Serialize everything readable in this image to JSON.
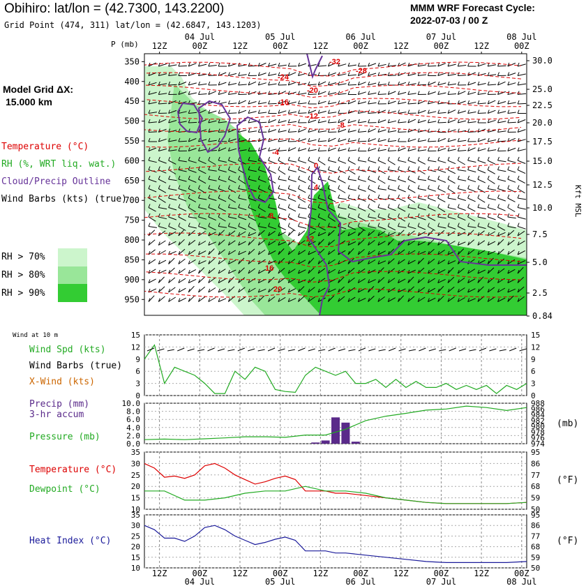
{
  "header": {
    "title": "Obihiro:  lat/lon = (42.7300, 143.2200)",
    "gridpoint": "Grid Point (474, 311) lat/lon = (42.6847, 143.1203)",
    "forecast_label": "MMM WRF Forecast Cycle:",
    "cycle": "2022-07-03 / 00  Z"
  },
  "model_grid": {
    "label": "Model Grid ΔX:",
    "value": "15.000 km"
  },
  "legend": {
    "temperature": "Temperature (°C)",
    "rh": "RH (%, WRT liq. wat.)",
    "cloud": "Cloud/Precip Outline",
    "windbarbs": "Wind Barbs (kts) (true)",
    "rh70": "RH > 70%",
    "rh80": "RH > 80%",
    "rh90": "RH > 90%"
  },
  "colors": {
    "temp": "#dd0000",
    "rh": "#22aa22",
    "cloud": "#663399",
    "wind": "#000000",
    "xwind": "#cc6600",
    "precip": "#5a2a8a",
    "heat": "#1a1a9a",
    "rh70": "#ccf5cc",
    "rh80": "#99e699",
    "rh90": "#33cc33"
  },
  "time_axis": {
    "ticks": [
      "12Z",
      "00Z",
      "12Z",
      "00Z",
      "12Z",
      "00Z",
      "12Z",
      "00Z",
      "12Z",
      "00Z"
    ],
    "dates": [
      "04 Jul",
      "05 Jul",
      "06 Jul",
      "07 Jul",
      "08 Jul"
    ]
  },
  "sounding": {
    "p_label": "P (mb)",
    "pressure_ticks": [
      "350",
      "400",
      "450",
      "500",
      "550",
      "600",
      "650",
      "700",
      "750",
      "800",
      "850",
      "900",
      "950"
    ],
    "height_ticks": [
      "30.0",
      "25.0",
      "22.5",
      "20.0",
      "17.5",
      "15.0",
      "12.5",
      "10.0",
      "7.5",
      "5.0",
      "2.5",
      "0.84"
    ],
    "height_label": "Kft MSL",
    "temp_labels": [
      "-32",
      "-28",
      "-24",
      "-20",
      "-16",
      "-12",
      "-8",
      "-4",
      "0",
      "4",
      "8",
      "12",
      "16",
      "20"
    ]
  },
  "wind_panel": {
    "wind_at": "Wind at 10 m",
    "spd_label": "Wind Spd (kts)",
    "barbs_label": "Wind Barbs (true)",
    "xwind_label": "X-Wind (kts)",
    "ticks": [
      "15",
      "12",
      "9",
      "6",
      "3",
      "0"
    ]
  },
  "precip_panel": {
    "precip_label": "Precip (mm)",
    "accum_label": "3-hr accum",
    "pressure_label": "Pressure (mb)",
    "mb_unit": "(mb)",
    "left_ticks": [
      "10.0",
      "8.0",
      "6.0",
      "4.0",
      "2.0",
      "0.0"
    ],
    "right_ticks": [
      "988",
      "986",
      "984",
      "982",
      "980",
      "978",
      "976",
      "974"
    ]
  },
  "temp_panel": {
    "temp_label": "Temperature (°C)",
    "dew_label": "Dewpoint (°C)",
    "unit": "(°F)",
    "c_ticks": [
      "35",
      "30",
      "25",
      "20",
      "15",
      "10"
    ],
    "f_ticks": [
      "95",
      "86",
      "77",
      "68",
      "59",
      "50"
    ]
  },
  "heat_panel": {
    "heat_label": "Heat Index (°C)",
    "unit": "(°F)",
    "c_ticks": [
      "35",
      "30",
      "25",
      "20",
      "15",
      "10"
    ],
    "f_ticks": [
      "95",
      "86",
      "77",
      "68",
      "59",
      "50"
    ]
  },
  "chart_data": [
    {
      "type": "line",
      "name": "wind_speed_10m",
      "x": [
        0,
        1,
        2,
        3,
        4,
        5,
        6,
        7,
        8,
        9,
        10,
        11,
        12,
        13,
        14,
        15,
        16,
        17,
        18,
        19,
        20,
        21,
        22,
        23,
        24,
        25,
        26,
        27,
        28,
        29,
        30,
        31,
        32,
        33,
        34,
        35,
        36,
        37,
        38
      ],
      "y": [
        9,
        12.5,
        3,
        7,
        6,
        5,
        3,
        0.5,
        0.5,
        6,
        4,
        7,
        6,
        1.5,
        1,
        0.8,
        5,
        7,
        6,
        5,
        6,
        3,
        3,
        4,
        2,
        4,
        2,
        3.5,
        2,
        2,
        3,
        1.5,
        2.5,
        1.5,
        2.5,
        0.5,
        2.5,
        1.5,
        3
      ],
      "ylim": [
        0,
        15
      ]
    },
    {
      "type": "bar",
      "name": "precip_3hr",
      "x": [
        17,
        18,
        19,
        20,
        21
      ],
      "values": [
        0.3,
        0.8,
        6.5,
        5.2,
        0.5
      ],
      "ylim": [
        0,
        10
      ]
    },
    {
      "type": "line",
      "name": "pressure",
      "x": [
        0,
        2,
        4,
        6,
        8,
        10,
        12,
        14,
        16,
        18,
        20,
        22,
        24,
        26,
        28,
        30,
        32,
        34,
        36,
        38
      ],
      "y": [
        975.4,
        975.6,
        975.4,
        975.7,
        976.0,
        976.4,
        976.4,
        976.2,
        977.0,
        977.0,
        979.0,
        982.0,
        983.5,
        984.5,
        985.6,
        986.0,
        987.0,
        986.5,
        985.5,
        986.5
      ],
      "ylim": [
        974,
        988
      ]
    },
    {
      "type": "line",
      "name": "temperature",
      "x": [
        0,
        1,
        2,
        3,
        4,
        5,
        6,
        7,
        8,
        9,
        10,
        11,
        12,
        13,
        14,
        15,
        16,
        17,
        18,
        19,
        20,
        22,
        24,
        26,
        28,
        30,
        32,
        34,
        36,
        38
      ],
      "y": [
        30,
        28,
        24,
        24.5,
        23.5,
        25,
        29,
        30,
        28,
        25,
        23,
        21,
        22,
        23.5,
        24.5,
        23,
        18,
        18,
        18,
        17,
        17,
        16,
        15,
        14,
        13,
        12.5,
        12.5,
        12.5,
        12.5,
        13
      ],
      "ylim": [
        10,
        35
      ]
    },
    {
      "type": "line",
      "name": "dewpoint",
      "x": [
        0,
        2,
        4,
        6,
        8,
        10,
        12,
        14,
        16,
        18,
        20,
        22,
        24,
        26,
        28,
        30,
        32,
        34,
        36,
        38
      ],
      "y": [
        18,
        18,
        14,
        14,
        15,
        17,
        18,
        18,
        20,
        18,
        18,
        17,
        15,
        14,
        13,
        12.5,
        12.5,
        12.5,
        12.5,
        13
      ],
      "ylim": [
        10,
        35
      ]
    },
    {
      "type": "line",
      "name": "heat_index",
      "x": [
        0,
        1,
        2,
        3,
        4,
        5,
        6,
        7,
        8,
        9,
        10,
        11,
        12,
        13,
        14,
        15,
        16,
        17,
        18,
        19,
        20,
        22,
        24,
        26,
        28,
        30,
        32,
        34,
        36,
        38
      ],
      "y": [
        30,
        28,
        24,
        24,
        22.5,
        25,
        29,
        30,
        28,
        25,
        23,
        21,
        22,
        23.5,
        24.5,
        23,
        18,
        18,
        18,
        17,
        17,
        16,
        15,
        14,
        13,
        12.5,
        12.5,
        12.5,
        12.5,
        13
      ],
      "ylim": [
        10,
        35
      ]
    }
  ]
}
